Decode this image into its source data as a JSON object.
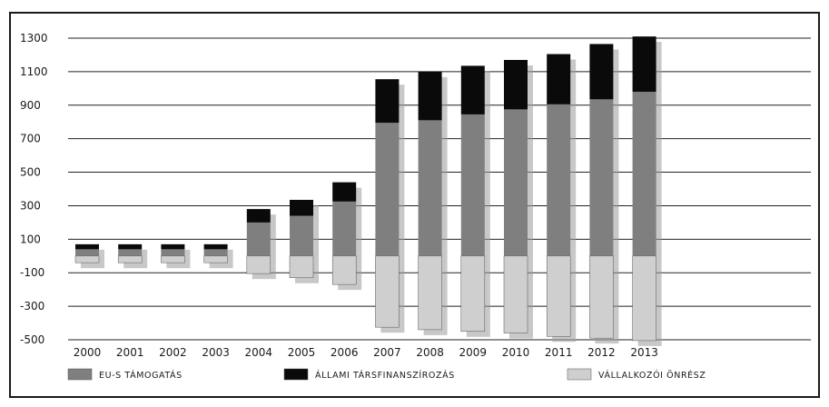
{
  "chart_data": {
    "type": "bar",
    "stacked": true,
    "categories": [
      "2000",
      "2001",
      "2002",
      "2003",
      "2004",
      "2005",
      "2006",
      "2007",
      "2008",
      "2009",
      "2010",
      "2011",
      "2012",
      "2013"
    ],
    "series": [
      {
        "name": "EU-S TÁMOGATÁS",
        "color": "#7f7f7f",
        "values": [
          40,
          40,
          40,
          40,
          200,
          240,
          325,
          795,
          810,
          845,
          875,
          905,
          935,
          980
        ]
      },
      {
        "name": "ÁLLAMI TÁRSFINANSZÍROZÁS",
        "color": "#0a0a0a",
        "values": [
          30,
          30,
          30,
          30,
          80,
          95,
          115,
          260,
          290,
          290,
          295,
          300,
          330,
          330
        ]
      },
      {
        "name": "VÁLLALKOZÓI ÖNRÉSZ",
        "color": "#cfcfcf",
        "values": [
          -40,
          -40,
          -40,
          -40,
          -105,
          -130,
          -170,
          -425,
          -440,
          -450,
          -460,
          -480,
          -490,
          -505
        ]
      }
    ],
    "ylim": [
      -500,
      1300
    ],
    "yticks": [
      "1300",
      "1100",
      "900",
      "700",
      "500",
      "300",
      "100",
      "-100",
      "-300",
      "-500"
    ],
    "ytick_values": [
      1300,
      1100,
      900,
      700,
      500,
      300,
      100,
      -100,
      -300,
      -500
    ],
    "grid": true,
    "legend_position": "bottom",
    "title": "",
    "xlabel": "",
    "ylabel": ""
  }
}
